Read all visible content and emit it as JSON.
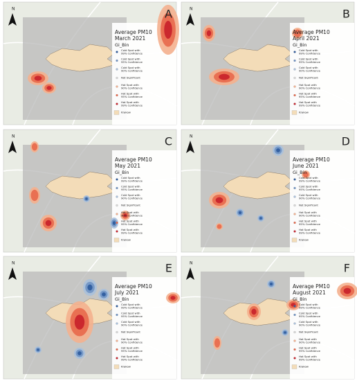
{
  "north": "N",
  "panels": [
    {
      "letter": "A",
      "title": "Average PM10",
      "month": "March 2021"
    },
    {
      "letter": "B",
      "title": "Average PM10",
      "month": "April 2021"
    },
    {
      "letter": "C",
      "title": "Average PM10",
      "month": "May 2021"
    },
    {
      "letter": "D",
      "title": "Average PM10",
      "month": "June 2021"
    },
    {
      "letter": "E",
      "title": "Average PM10",
      "month": "July 2021"
    },
    {
      "letter": "F",
      "title": "Average PM10",
      "month": "August 2021"
    }
  ],
  "legend": {
    "field": "Gi_Bin",
    "items": [
      {
        "lines": [
          "Cold Spot with",
          "99% Confidence"
        ],
        "color": "#2c5a9c"
      },
      {
        "lines": [
          "Cold Spot with",
          "95% Confidence"
        ],
        "color": "#6f93c4"
      },
      {
        "lines": [
          "Cold Spot with",
          "90% Confidence"
        ],
        "color": "#a9c0dc"
      },
      {
        "lines": [
          "Not Significant"
        ],
        "color": "#d9d9d9"
      },
      {
        "lines": [
          "Hot Spot with",
          "90% Confidence"
        ],
        "color": "#f4b08e"
      },
      {
        "lines": [
          "Hot Spot with",
          "95% Confidence"
        ],
        "color": "#e8684b"
      },
      {
        "lines": [
          "Hot Spot with",
          "99% Confidence"
        ],
        "color": "#c8202a"
      },
      {
        "lines": [
          "Krakow"
        ],
        "color": "#f3dcb8"
      }
    ]
  }
}
